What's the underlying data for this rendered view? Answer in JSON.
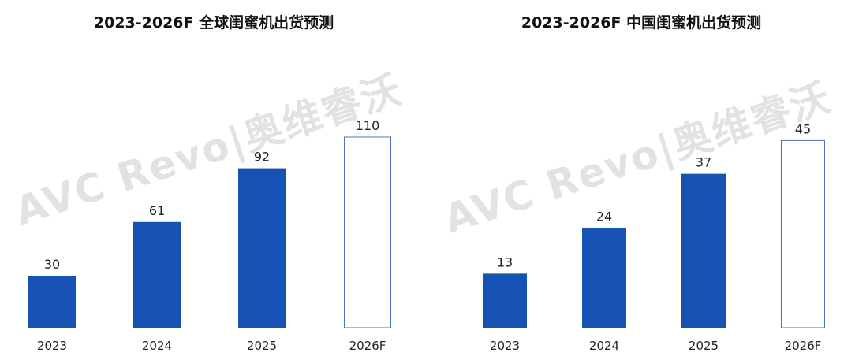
{
  "colors": {
    "bar": "#1652B4",
    "forecast_border": "#4A72C4",
    "axis": "#d9d9d9",
    "text": "#222222"
  },
  "watermark": "AVC Revo|奥维睿沃",
  "chart_data": [
    {
      "type": "bar",
      "title": "2023-2026F 全球闺蜜机出货预测",
      "categories": [
        "2023",
        "2024",
        "2025",
        "2026F"
      ],
      "values": [
        30,
        61,
        92,
        110
      ],
      "forecast": [
        false,
        false,
        false,
        true
      ],
      "labels": [
        "30",
        "61",
        "92",
        "110"
      ],
      "ylim": [
        0,
        120
      ],
      "grid": false,
      "legend": "none"
    },
    {
      "type": "bar",
      "title": "2023-2026F 中国闺蜜机出货预测",
      "categories": [
        "2023",
        "2024",
        "2025",
        "2026F"
      ],
      "values": [
        13,
        24,
        37,
        45
      ],
      "forecast": [
        false,
        false,
        false,
        true
      ],
      "labels": [
        "13",
        "24",
        "37",
        "45"
      ],
      "ylim": [
        0,
        50
      ],
      "grid": false,
      "legend": "none"
    }
  ]
}
